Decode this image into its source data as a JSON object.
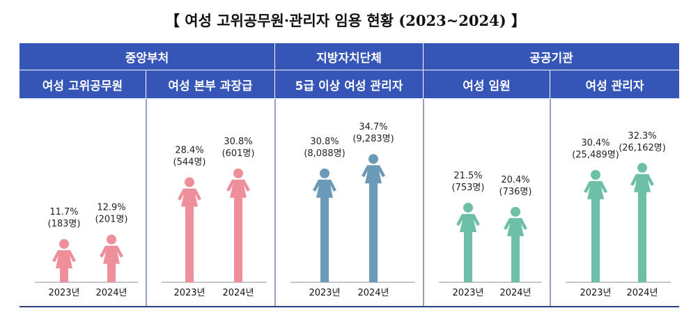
{
  "title": "【 여성 고위공무원·관리자 임용 현황 (2023~2024) 】",
  "colors": {
    "header": "#3556b6",
    "central": "#ef8f9b",
    "local": "#6a9ab8",
    "public": "#6dbfa8",
    "divider": "#2b3f7a"
  },
  "categories": [
    {
      "label": "중앙부처"
    },
    {
      "label": "지방자치단체"
    },
    {
      "label": "공공기관"
    }
  ],
  "chart_data": {
    "type": "bar",
    "title": "【 여성 고위공무원·관리자 임용 현황 (2023~2024) 】",
    "categories": [
      "2023년",
      "2024년"
    ],
    "unit": "%",
    "groups": [
      {
        "label": "여성 고위공무원",
        "category": "중앙부처",
        "color": "#ef8f9b",
        "values": [
          11.7,
          12.9
        ],
        "counts": [
          "(183명)",
          "(201명)"
        ]
      },
      {
        "label": "여성 본부 과장급",
        "category": "중앙부처",
        "color": "#ef8f9b",
        "values": [
          28.4,
          30.8
        ],
        "counts": [
          "(544명)",
          "(601명)"
        ]
      },
      {
        "label": "5급 이상 여성 관리자",
        "category": "지방자치단체",
        "color": "#6a9ab8",
        "values": [
          30.8,
          34.7
        ],
        "counts": [
          "(8,088명)",
          "(9,283명)"
        ]
      },
      {
        "label": "여성 임원",
        "category": "공공기관",
        "color": "#6dbfa8",
        "values": [
          21.5,
          20.4
        ],
        "counts": [
          "(753명)",
          "(736명)"
        ]
      },
      {
        "label": "여성 관리자",
        "category": "공공기관",
        "color": "#6dbfa8",
        "values": [
          30.4,
          32.3
        ],
        "counts": [
          "(25,489명)",
          "(26,162명)"
        ]
      }
    ]
  }
}
